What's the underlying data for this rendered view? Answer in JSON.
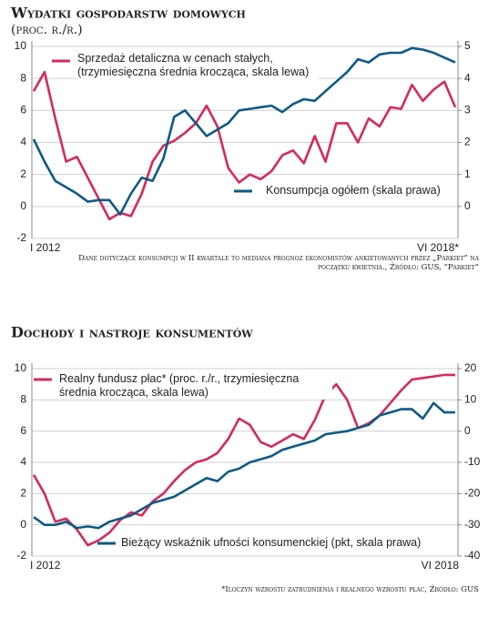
{
  "chart_data": [
    {
      "type": "line",
      "title": "Wydatki gospodarstw domowych",
      "subtitle": "(proc. r./r.)",
      "note": "Dane dotyczące konsumpcji w II kwartale to mediana prognoz ekonomistów ankietowanych przez „Parkiet” na początku kwietnia., Źródło: GUS, “Parkiet”",
      "categories": [
        "I 2012",
        null,
        null,
        null,
        null,
        null,
        null,
        null,
        null,
        null,
        null,
        null,
        null,
        null,
        null,
        null,
        null,
        null,
        null,
        null,
        null,
        null,
        null,
        null,
        null,
        null,
        null,
        null,
        null,
        null,
        null,
        null,
        null,
        null,
        null,
        null,
        null,
        null,
        null,
        "VI 2018*"
      ],
      "series": [
        {
          "name": "Sprzedaż detaliczna w cenach stałych, (trzymiesięczna średnia krocząca, skala lewa)",
          "color": "#d6295a",
          "axis": "y",
          "values": [
            7.2,
            8.4,
            5.5,
            2.8,
            3.1,
            1.8,
            0.5,
            -0.8,
            -0.4,
            -0.6,
            0.8,
            2.8,
            3.8,
            4.1,
            4.6,
            5.2,
            6.3,
            5.0,
            2.4,
            1.5,
            2.0,
            1.7,
            2.2,
            3.2,
            3.5,
            2.7,
            4.4,
            2.8,
            5.2,
            5.2,
            4.0,
            5.5,
            5.0,
            6.2,
            6.1,
            7.6,
            6.6,
            7.3,
            7.8,
            6.2
          ]
        },
        {
          "name": "Konsumpcja ogółem (skala prawa)",
          "color": "#0d5a86",
          "axis": "y2",
          "values": [
            2.1,
            1.4,
            0.8,
            0.6,
            0.4,
            0.15,
            0.2,
            0.2,
            -0.25,
            0.4,
            0.9,
            0.8,
            1.5,
            2.8,
            3.0,
            2.6,
            2.2,
            2.4,
            2.6,
            3.0,
            3.05,
            3.1,
            3.15,
            2.95,
            3.2,
            3.35,
            3.3,
            3.6,
            3.9,
            4.2,
            4.6,
            4.5,
            4.75,
            4.8,
            4.8,
            4.95,
            4.9,
            4.8,
            4.65,
            4.5
          ]
        }
      ],
      "ylim": [
        -2,
        10
      ],
      "yticks": [
        -2,
        0,
        2,
        4,
        6,
        8,
        10
      ],
      "y2lim": [
        -1,
        5
      ],
      "y2ticks": [
        0,
        1,
        2,
        3,
        4,
        5
      ],
      "grid": true
    },
    {
      "type": "line",
      "title": "Dochody i nastroje konsumentów",
      "note": "*Iloczyn wzrostu zatrudnienia i realnego wzrostu płac, Źródło: GUS",
      "categories": [
        "I 2012",
        null,
        null,
        null,
        null,
        null,
        null,
        null,
        null,
        null,
        null,
        null,
        null,
        null,
        null,
        null,
        null,
        null,
        null,
        null,
        null,
        null,
        null,
        null,
        null,
        null,
        null,
        null,
        null,
        null,
        null,
        null,
        null,
        null,
        null,
        null,
        null,
        null,
        null,
        "VI 2018"
      ],
      "series": [
        {
          "name": "Realny fundusz płac* (proc. r./r., trzymiesięczna średnia krocząca, skala lewa)",
          "color": "#d6295a",
          "axis": "y",
          "values": [
            3.2,
            2.0,
            0.2,
            0.4,
            -0.3,
            -1.3,
            -1.0,
            -0.5,
            0.3,
            0.8,
            0.6,
            1.5,
            2.0,
            2.8,
            3.5,
            4.0,
            4.2,
            4.6,
            5.5,
            6.8,
            6.4,
            5.3,
            5.0,
            5.4,
            5.8,
            5.5,
            6.7,
            8.3,
            9.0,
            8.0,
            6.2,
            6.5,
            7.0,
            7.8,
            8.6,
            9.3,
            9.4,
            9.5,
            9.6,
            9.6
          ]
        },
        {
          "name": "Bieżący wskaźnik ufności konsumenckiej (pkt, skala prawa)",
          "color": "#0d5a86",
          "axis": "y2",
          "values": [
            -27.5,
            -30,
            -30,
            -29,
            -31,
            -30.5,
            -31,
            -29,
            -28,
            -27,
            -25,
            -23,
            -22,
            -21,
            -19,
            -17,
            -15,
            -16,
            -13,
            -12,
            -10,
            -9,
            -8,
            -6,
            -5,
            -4,
            -3,
            -1,
            -0.5,
            0,
            1,
            2,
            5,
            6,
            7,
            7,
            4,
            9,
            6,
            6
          ]
        }
      ],
      "ylim": [
        -2,
        10
      ],
      "yticks": [
        -2,
        0,
        2,
        4,
        6,
        8,
        10
      ],
      "y2lim": [
        -40,
        20
      ],
      "y2ticks": [
        -40,
        -30,
        -20,
        -10,
        0,
        10,
        20
      ],
      "grid": true
    }
  ]
}
